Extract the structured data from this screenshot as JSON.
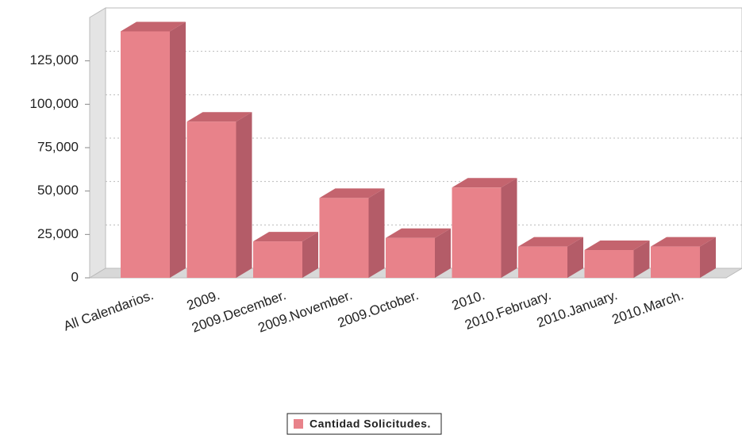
{
  "chart_data": {
    "type": "bar3d",
    "categories": [
      "All Calendarios.",
      "2009.",
      "2009.December.",
      "2009.November.",
      "2009.October.",
      "2010.",
      "2010.February.",
      "2010.January.",
      "2010.March."
    ],
    "series": [
      {
        "name": "Cantidad Solicitudes.",
        "color": "#e8828a",
        "values": [
          142000,
          90000,
          21000,
          46000,
          23000,
          52000,
          18000,
          16000,
          18000
        ]
      }
    ],
    "ylim": [
      0,
      150000
    ],
    "yticks": [
      0,
      {
        "value": 25000,
        "label": "25,000"
      },
      {
        "value": 50000,
        "label": "50,000"
      },
      {
        "value": 75000,
        "label": "75,000"
      },
      {
        "value": 100000,
        "label": "100,000"
      },
      {
        "value": 125000,
        "label": "125,000"
      }
    ],
    "grid": true,
    "legend": "bottom"
  }
}
